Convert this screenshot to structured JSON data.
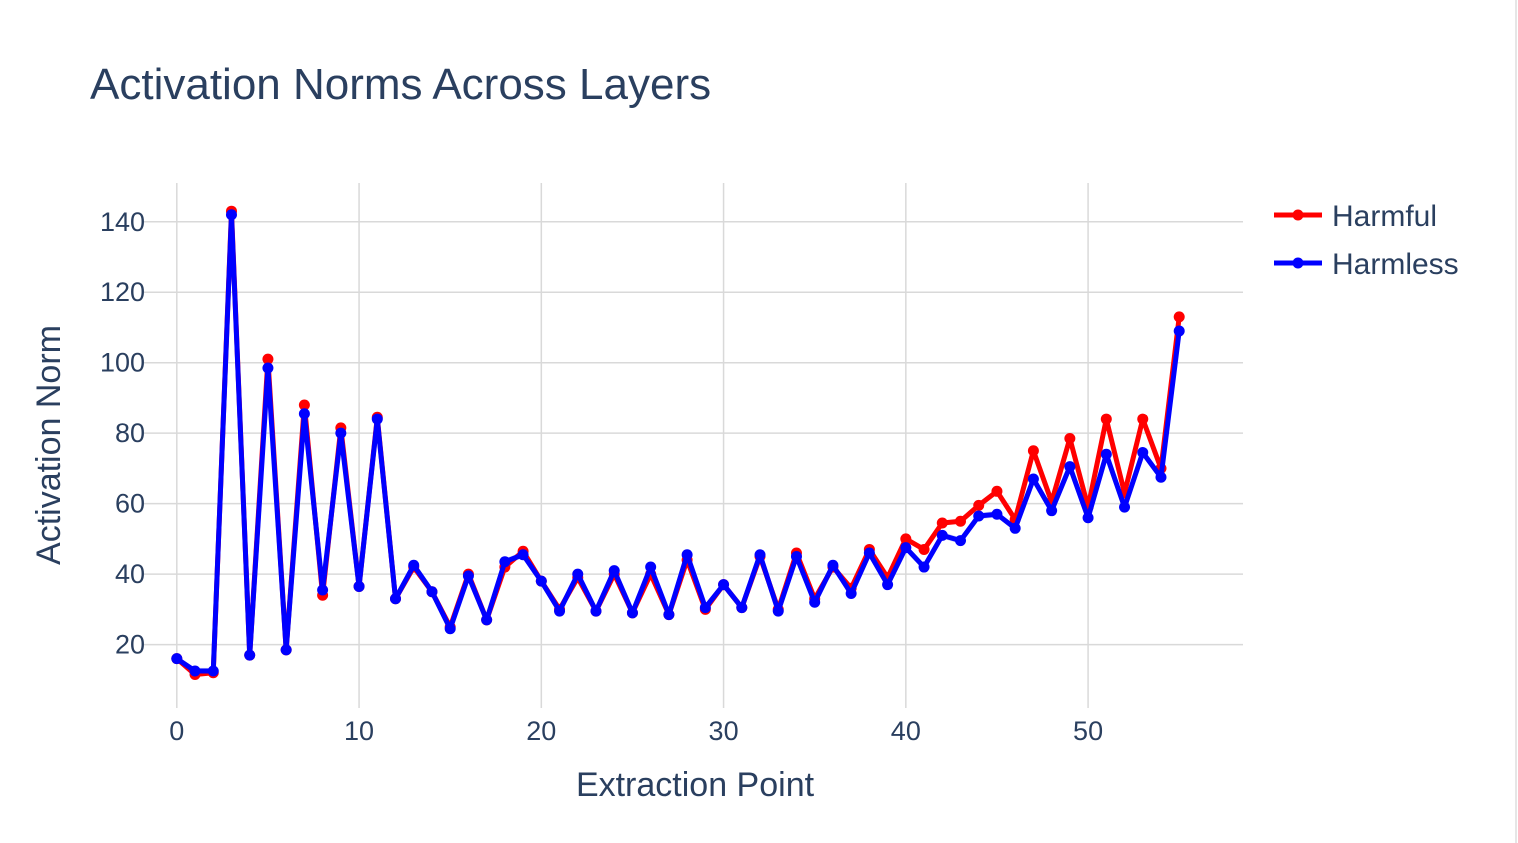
{
  "chart_data": {
    "type": "line",
    "title": "Activation Norms Across Layers",
    "xlabel": "Extraction Point",
    "ylabel": "Activation Norm",
    "xlim": [
      -1.8,
      58.5
    ],
    "ylim": [
      2,
      151
    ],
    "xticks": [
      0,
      10,
      20,
      30,
      40,
      50
    ],
    "yticks": [
      20,
      40,
      60,
      80,
      100,
      120,
      140
    ],
    "grid": true,
    "legend_position": "top-right",
    "x": [
      0,
      1,
      2,
      3,
      4,
      5,
      6,
      7,
      8,
      9,
      10,
      11,
      12,
      13,
      14,
      15,
      16,
      17,
      18,
      19,
      20,
      21,
      22,
      23,
      24,
      25,
      26,
      27,
      28,
      29,
      30,
      31,
      32,
      33,
      34,
      35,
      36,
      37,
      38,
      39,
      40,
      41,
      42,
      43,
      44,
      45,
      46,
      47,
      48,
      49,
      50,
      51,
      52,
      53,
      54,
      55
    ],
    "series": [
      {
        "name": "Harmful",
        "color": "#ff0000",
        "values": [
          16,
          11.5,
          12,
          143,
          17,
          101,
          18.5,
          88,
          34,
          81.5,
          36.5,
          84.5,
          33,
          42,
          35,
          25,
          40,
          27,
          42,
          46.5,
          38,
          30,
          39,
          29.5,
          40,
          29,
          40,
          28.5,
          44,
          30,
          37,
          30.5,
          45,
          30,
          46,
          33,
          42,
          36,
          47,
          39,
          50,
          47,
          54.5,
          55,
          59.5,
          63.5,
          55.5,
          75,
          60.5,
          78.5,
          59,
          84,
          63,
          84,
          70,
          113
        ]
      },
      {
        "name": "Harmless",
        "color": "#0000ff",
        "band_color": "#b3b8ef",
        "values": [
          16,
          12.5,
          12.5,
          142,
          17,
          98.5,
          18.5,
          85.5,
          35.5,
          80,
          36.5,
          84,
          33,
          42.5,
          35,
          24.5,
          39.5,
          27,
          43.5,
          45.5,
          38,
          29.5,
          40,
          29.5,
          41,
          29,
          42,
          28.5,
          45.5,
          30.5,
          37,
          30.5,
          45.5,
          29.5,
          45,
          32,
          42.5,
          34.5,
          46,
          37,
          47.5,
          42,
          51,
          49.5,
          56.5,
          57,
          53,
          67,
          58,
          70.5,
          56,
          74,
          59,
          74.5,
          67.5,
          109
        ]
      }
    ]
  }
}
